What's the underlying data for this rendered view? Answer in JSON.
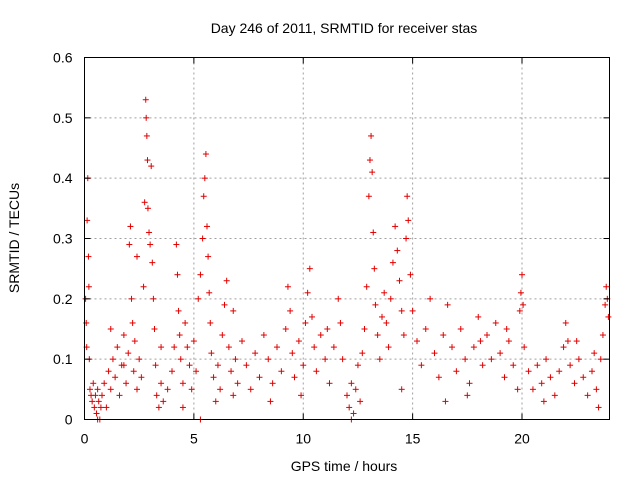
{
  "chart_data": {
    "type": "scatter",
    "title": "Day 246 of 2011, SRMTID for receiver stas",
    "xlabel": "GPS time / hours",
    "ylabel": "SRMTID / TECUs",
    "xlim": [
      0,
      24
    ],
    "ylim": [
      0,
      0.6
    ],
    "x_ticks": [
      0,
      5,
      10,
      15,
      20
    ],
    "x_tick_labels": [
      "0",
      "5",
      "10",
      "15",
      "20"
    ],
    "y_ticks": [
      0,
      0.1,
      0.2,
      0.3,
      0.4,
      0.5,
      0.6
    ],
    "y_tick_labels": [
      "0",
      "0.1",
      "0.2",
      "0.3",
      "0.4",
      "0.5",
      "0.6"
    ],
    "grid": true,
    "legend": "none",
    "marker": "+",
    "series": [
      {
        "name": "SRMTID",
        "color": "#e00000",
        "points": [
          [
            0.05,
            0.2
          ],
          [
            0.08,
            0.16
          ],
          [
            0.1,
            0.12
          ],
          [
            0.12,
            0.33
          ],
          [
            0.15,
            0.4
          ],
          [
            0.18,
            0.27
          ],
          [
            0.2,
            0.22
          ],
          [
            0.22,
            0.1
          ],
          [
            0.25,
            0.05
          ],
          [
            0.3,
            0.04
          ],
          [
            0.35,
            0.03
          ],
          [
            0.4,
            0.06
          ],
          [
            0.45,
            0.02
          ],
          [
            0.5,
            0.04
          ],
          [
            0.55,
            0.01
          ],
          [
            0.6,
            0.05
          ],
          [
            0.65,
            0.03
          ],
          [
            0.7,
            0.0
          ],
          [
            0.75,
            0.02
          ],
          [
            0.8,
            0.04
          ],
          [
            0.9,
            0.06
          ],
          [
            1.0,
            0.02
          ],
          [
            1.1,
            0.08
          ],
          [
            1.2,
            0.05
          ],
          [
            1.3,
            0.1
          ],
          [
            1.4,
            0.07
          ],
          [
            1.5,
            0.12
          ],
          [
            1.6,
            0.04
          ],
          [
            1.7,
            0.09
          ],
          [
            1.8,
            0.14
          ],
          [
            1.9,
            0.06
          ],
          [
            2.0,
            0.11
          ],
          [
            2.05,
            0.29
          ],
          [
            2.1,
            0.32
          ],
          [
            2.15,
            0.2
          ],
          [
            2.2,
            0.16
          ],
          [
            2.25,
            0.08
          ],
          [
            2.3,
            0.13
          ],
          [
            2.4,
            0.05
          ],
          [
            2.5,
            0.1
          ],
          [
            2.6,
            0.07
          ],
          [
            2.7,
            0.22
          ],
          [
            2.75,
            0.36
          ],
          [
            2.8,
            0.53
          ],
          [
            2.82,
            0.5
          ],
          [
            2.85,
            0.47
          ],
          [
            2.88,
            0.43
          ],
          [
            2.9,
            0.35
          ],
          [
            2.95,
            0.31
          ],
          [
            3.0,
            0.29
          ],
          [
            3.05,
            0.42
          ],
          [
            3.1,
            0.26
          ],
          [
            3.15,
            0.2
          ],
          [
            3.2,
            0.15
          ],
          [
            3.25,
            0.09
          ],
          [
            3.3,
            0.04
          ],
          [
            3.4,
            0.02
          ],
          [
            3.5,
            0.06
          ],
          [
            3.6,
            0.03
          ],
          [
            3.8,
            0.05
          ],
          [
            4.0,
            0.08
          ],
          [
            4.1,
            0.12
          ],
          [
            4.2,
            0.29
          ],
          [
            4.25,
            0.24
          ],
          [
            4.3,
            0.18
          ],
          [
            4.35,
            0.14
          ],
          [
            4.4,
            0.1
          ],
          [
            4.5,
            0.06
          ],
          [
            4.6,
            0.16
          ],
          [
            4.7,
            0.12
          ],
          [
            4.8,
            0.09
          ],
          [
            4.9,
            0.05
          ],
          [
            5.0,
            0.13
          ],
          [
            5.1,
            0.08
          ],
          [
            5.2,
            0.2
          ],
          [
            5.3,
            0.24
          ],
          [
            5.4,
            0.3
          ],
          [
            5.45,
            0.37
          ],
          [
            5.5,
            0.4
          ],
          [
            5.55,
            0.44
          ],
          [
            5.6,
            0.32
          ],
          [
            5.65,
            0.27
          ],
          [
            5.7,
            0.21
          ],
          [
            5.75,
            0.16
          ],
          [
            5.8,
            0.11
          ],
          [
            5.9,
            0.07
          ],
          [
            6.0,
            0.03
          ],
          [
            6.1,
            0.09
          ],
          [
            6.2,
            0.05
          ],
          [
            6.3,
            0.14
          ],
          [
            6.4,
            0.19
          ],
          [
            6.5,
            0.23
          ],
          [
            6.6,
            0.12
          ],
          [
            6.7,
            0.08
          ],
          [
            6.8,
            0.04
          ],
          [
            6.9,
            0.1
          ],
          [
            7.0,
            0.06
          ],
          [
            7.2,
            0.13
          ],
          [
            7.4,
            0.09
          ],
          [
            7.6,
            0.05
          ],
          [
            7.8,
            0.11
          ],
          [
            8.0,
            0.07
          ],
          [
            8.2,
            0.14
          ],
          [
            8.4,
            0.1
          ],
          [
            8.6,
            0.06
          ],
          [
            8.8,
            0.12
          ],
          [
            9.0,
            0.08
          ],
          [
            9.2,
            0.15
          ],
          [
            9.3,
            0.22
          ],
          [
            9.4,
            0.18
          ],
          [
            9.5,
            0.11
          ],
          [
            9.6,
            0.07
          ],
          [
            9.8,
            0.13
          ],
          [
            10.0,
            0.09
          ],
          [
            10.1,
            0.16
          ],
          [
            10.2,
            0.21
          ],
          [
            10.3,
            0.25
          ],
          [
            10.4,
            0.17
          ],
          [
            10.5,
            0.12
          ],
          [
            10.6,
            0.08
          ],
          [
            10.8,
            0.14
          ],
          [
            11.0,
            0.1
          ],
          [
            11.2,
            0.06
          ],
          [
            11.4,
            0.12
          ],
          [
            11.6,
            0.2
          ],
          [
            11.7,
            0.16
          ],
          [
            11.8,
            0.1
          ],
          [
            12.0,
            0.04
          ],
          [
            12.1,
            0.02
          ],
          [
            12.2,
            0.06
          ],
          [
            12.3,
            0.01
          ],
          [
            12.4,
            0.05
          ],
          [
            12.5,
            0.09
          ],
          [
            12.6,
            0.03
          ],
          [
            12.7,
            0.11
          ],
          [
            12.8,
            0.15
          ],
          [
            12.9,
            0.22
          ],
          [
            13.0,
            0.37
          ],
          [
            13.05,
            0.43
          ],
          [
            13.1,
            0.47
          ],
          [
            13.15,
            0.41
          ],
          [
            13.2,
            0.31
          ],
          [
            13.25,
            0.25
          ],
          [
            13.3,
            0.19
          ],
          [
            13.4,
            0.14
          ],
          [
            13.5,
            0.1
          ],
          [
            13.6,
            0.17
          ],
          [
            13.7,
            0.21
          ],
          [
            13.8,
            0.16
          ],
          [
            13.9,
            0.12
          ],
          [
            14.0,
            0.2
          ],
          [
            14.1,
            0.26
          ],
          [
            14.2,
            0.32
          ],
          [
            14.3,
            0.28
          ],
          [
            14.4,
            0.23
          ],
          [
            14.5,
            0.18
          ],
          [
            14.6,
            0.14
          ],
          [
            14.7,
            0.3
          ],
          [
            14.75,
            0.37
          ],
          [
            14.8,
            0.33
          ],
          [
            14.9,
            0.24
          ],
          [
            15.0,
            0.18
          ],
          [
            15.2,
            0.13
          ],
          [
            15.4,
            0.09
          ],
          [
            15.6,
            0.15
          ],
          [
            15.8,
            0.2
          ],
          [
            16.0,
            0.11
          ],
          [
            16.2,
            0.07
          ],
          [
            16.4,
            0.14
          ],
          [
            16.6,
            0.19
          ],
          [
            16.8,
            0.12
          ],
          [
            17.0,
            0.08
          ],
          [
            17.2,
            0.15
          ],
          [
            17.4,
            0.1
          ],
          [
            17.6,
            0.06
          ],
          [
            17.8,
            0.12
          ],
          [
            18.0,
            0.17
          ],
          [
            18.1,
            0.13
          ],
          [
            18.2,
            0.09
          ],
          [
            18.4,
            0.14
          ],
          [
            18.6,
            0.1
          ],
          [
            18.8,
            0.16
          ],
          [
            19.0,
            0.11
          ],
          [
            19.2,
            0.07
          ],
          [
            19.4,
            0.13
          ],
          [
            19.6,
            0.09
          ],
          [
            19.8,
            0.05
          ],
          [
            19.9,
            0.18
          ],
          [
            19.95,
            0.21
          ],
          [
            20.0,
            0.24
          ],
          [
            20.05,
            0.19
          ],
          [
            20.1,
            0.12
          ],
          [
            20.3,
            0.08
          ],
          [
            20.5,
            0.05
          ],
          [
            20.7,
            0.09
          ],
          [
            20.9,
            0.06
          ],
          [
            21.1,
            0.1
          ],
          [
            21.3,
            0.07
          ],
          [
            21.5,
            0.04
          ],
          [
            21.7,
            0.08
          ],
          [
            21.9,
            0.12
          ],
          [
            22.0,
            0.16
          ],
          [
            22.1,
            0.13
          ],
          [
            22.2,
            0.09
          ],
          [
            22.4,
            0.06
          ],
          [
            22.6,
            0.1
          ],
          [
            22.8,
            0.07
          ],
          [
            23.0,
            0.04
          ],
          [
            23.2,
            0.08
          ],
          [
            23.4,
            0.05
          ],
          [
            23.5,
            0.02
          ],
          [
            23.6,
            0.1
          ],
          [
            23.7,
            0.14
          ],
          [
            23.8,
            0.19
          ],
          [
            23.85,
            0.22
          ],
          [
            23.9,
            0.2
          ],
          [
            23.95,
            0.17
          ],
          [
            1.2,
            0.15
          ],
          [
            1.8,
            0.09
          ],
          [
            3.5,
            0.12
          ],
          [
            4.5,
            0.02
          ],
          [
            6.8,
            0.18
          ],
          [
            8.5,
            0.03
          ],
          [
            9.9,
            0.04
          ],
          [
            11.1,
            0.15
          ],
          [
            14.5,
            0.05
          ],
          [
            16.5,
            0.03
          ],
          [
            17.5,
            0.04
          ],
          [
            19.3,
            0.15
          ],
          [
            21.0,
            0.03
          ],
          [
            22.5,
            0.13
          ],
          [
            23.3,
            0.11
          ],
          [
            2.4,
            0.27
          ],
          [
            5.3,
            0.0
          ],
          [
            12.2,
            0.0
          ],
          [
            0.6,
            0.0
          ]
        ]
      }
    ]
  }
}
